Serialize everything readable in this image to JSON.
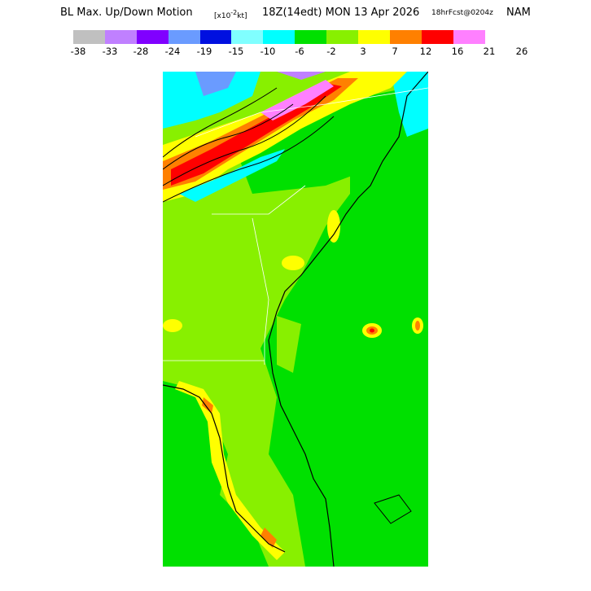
{
  "title": {
    "main_prefix": "BL Max. Up/Down Motion",
    "units_open": "[x10",
    "units_exp": "-2",
    "units_close": "kt]",
    "valid": "18Z(14edt) MON 13 Apr 2026",
    "forecast": "18hrFcst@0204z",
    "model": "NAM"
  },
  "colorbar": {
    "colors": [
      "#c0c0c0",
      "#c080ff",
      "#8000ff",
      "#6a9bff",
      "#0010e0",
      "#80ffff",
      "#00ffff",
      "#00e000",
      "#88f000",
      "#ffff00",
      "#ff8000",
      "#ff0000",
      "#ff80ff"
    ],
    "ticks": [
      "-38",
      "-33",
      "-28",
      "-24",
      "-19",
      "-15",
      "-10",
      "-6",
      "-2",
      "3",
      "7",
      "12",
      "16",
      "21",
      "26"
    ]
  },
  "map": {
    "background_color": "#88f000",
    "land_main_color": "#00e000"
  }
}
